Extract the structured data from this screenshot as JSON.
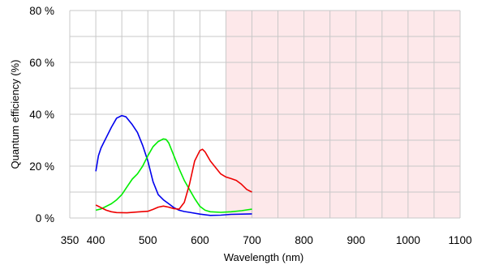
{
  "chart_data": {
    "type": "line",
    "title": "",
    "xlabel": "Wavelength (nm)",
    "ylabel": "Quantum efficiency (%)",
    "xlim": [
      350,
      1100
    ],
    "ylim": [
      0,
      80
    ],
    "x_ticks": [
      350,
      400,
      500,
      600,
      700,
      800,
      900,
      1000,
      1100
    ],
    "x_tick_labels": [
      "350",
      "400",
      "500",
      "600",
      "700",
      "800",
      "900",
      "1000",
      "1100"
    ],
    "x_grid_step": 50,
    "y_ticks": [
      0,
      20,
      40,
      60,
      80
    ],
    "y_tick_labels": [
      "0 %",
      "20 %",
      "40 %",
      "60 %",
      "80 %"
    ],
    "y_grid_step": 10,
    "grid": true,
    "legend": "none",
    "shaded_region": {
      "x_from": 650,
      "x_to": 1100,
      "color": "#fde8ea"
    },
    "grid_color": "#c8c8c8",
    "series": [
      {
        "color": "#0000ee",
        "points": [
          [
            400,
            18
          ],
          [
            405,
            24
          ],
          [
            410,
            27
          ],
          [
            420,
            31
          ],
          [
            430,
            35
          ],
          [
            440,
            38.5
          ],
          [
            450,
            39.5
          ],
          [
            458,
            39
          ],
          [
            470,
            36
          ],
          [
            480,
            33
          ],
          [
            490,
            28
          ],
          [
            500,
            22
          ],
          [
            510,
            14
          ],
          [
            520,
            9
          ],
          [
            530,
            7
          ],
          [
            540,
            5.5
          ],
          [
            550,
            4
          ],
          [
            560,
            3
          ],
          [
            570,
            2.5
          ],
          [
            580,
            2.2
          ],
          [
            600,
            1.5
          ],
          [
            620,
            1
          ],
          [
            640,
            1.1
          ],
          [
            660,
            1.4
          ],
          [
            700,
            1.6
          ]
        ]
      },
      {
        "color": "#00ee00",
        "points": [
          [
            400,
            3
          ],
          [
            410,
            3.5
          ],
          [
            420,
            4.5
          ],
          [
            430,
            5.5
          ],
          [
            440,
            7
          ],
          [
            450,
            9
          ],
          [
            460,
            12
          ],
          [
            470,
            15
          ],
          [
            480,
            17
          ],
          [
            490,
            20
          ],
          [
            500,
            24
          ],
          [
            510,
            27.5
          ],
          [
            520,
            29.5
          ],
          [
            530,
            30.5
          ],
          [
            535,
            30.3
          ],
          [
            540,
            29
          ],
          [
            550,
            24
          ],
          [
            560,
            19
          ],
          [
            570,
            14.5
          ],
          [
            580,
            11
          ],
          [
            590,
            7.5
          ],
          [
            600,
            4.5
          ],
          [
            610,
            3
          ],
          [
            620,
            2.4
          ],
          [
            640,
            2.2
          ],
          [
            660,
            2.4
          ],
          [
            680,
            2.8
          ],
          [
            700,
            3.4
          ]
        ]
      },
      {
        "color": "#ee0000",
        "points": [
          [
            400,
            5
          ],
          [
            410,
            4
          ],
          [
            420,
            3
          ],
          [
            430,
            2.4
          ],
          [
            440,
            2.1
          ],
          [
            460,
            2
          ],
          [
            480,
            2.3
          ],
          [
            500,
            2.6
          ],
          [
            510,
            3.3
          ],
          [
            520,
            4.2
          ],
          [
            530,
            4.6
          ],
          [
            540,
            4.2
          ],
          [
            550,
            3.6
          ],
          [
            560,
            3.4
          ],
          [
            570,
            6
          ],
          [
            580,
            13
          ],
          [
            590,
            22
          ],
          [
            600,
            26
          ],
          [
            605,
            26.5
          ],
          [
            610,
            25.5
          ],
          [
            620,
            22
          ],
          [
            630,
            19.5
          ],
          [
            640,
            17
          ],
          [
            650,
            15.8
          ],
          [
            660,
            15.2
          ],
          [
            670,
            14.5
          ],
          [
            680,
            13
          ],
          [
            690,
            11
          ],
          [
            700,
            10
          ]
        ]
      }
    ]
  }
}
